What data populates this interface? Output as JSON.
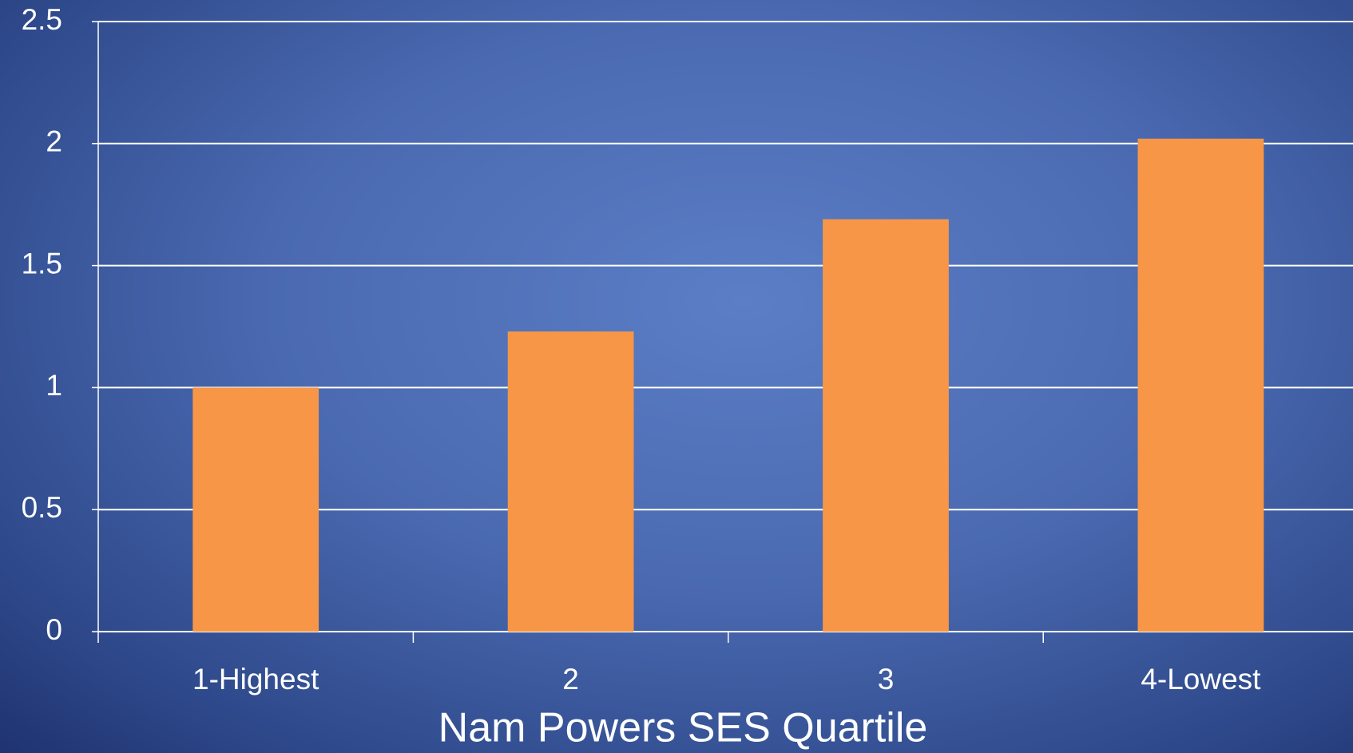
{
  "chart_data": {
    "type": "bar",
    "x_label": "Nam Powers SES Quartile",
    "categories": [
      "1-Highest",
      "2",
      "3",
      "4-Lowest"
    ],
    "values": [
      1.0,
      1.23,
      1.69,
      2.02
    ],
    "color": "#f79646",
    "ylim": [
      0,
      2.5
    ],
    "yticks": [
      0,
      0.5,
      1,
      1.5,
      2,
      2.5
    ],
    "grid": true
  }
}
